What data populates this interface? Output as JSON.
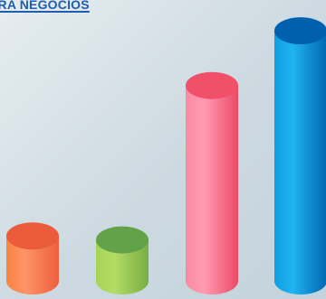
{
  "header": {
    "link_text": "ERA NEGOCIOS"
  },
  "colors": {
    "link": "#1e5db0",
    "background_light": "#e6edf1",
    "background_dark": "#c4d3db"
  },
  "chart_data": {
    "type": "bar",
    "style": "3d-cylinder",
    "categories": [
      "",
      "",
      "",
      ""
    ],
    "values": [
      23,
      21,
      100,
      128
    ],
    "ylim": [
      0,
      135
    ],
    "grid": false,
    "title": "",
    "xlabel": "",
    "ylabel": "",
    "colors": [
      {
        "top": "#ea5c3a",
        "left": "#f98442",
        "right": "#ee5f3d",
        "mid": "#ff9468"
      },
      {
        "top": "#62a34a",
        "left": "#a6d456",
        "right": "#78ad44",
        "mid": "#b4dc66"
      },
      {
        "top": "#f0506a",
        "left": "#f98aa0",
        "right": "#ec4a66",
        "mid": "#ff9cb2"
      },
      {
        "top": "#0060b0",
        "left": "#0e9ee0",
        "right": "#0066b0",
        "mid": "#20b4f0"
      }
    ]
  }
}
